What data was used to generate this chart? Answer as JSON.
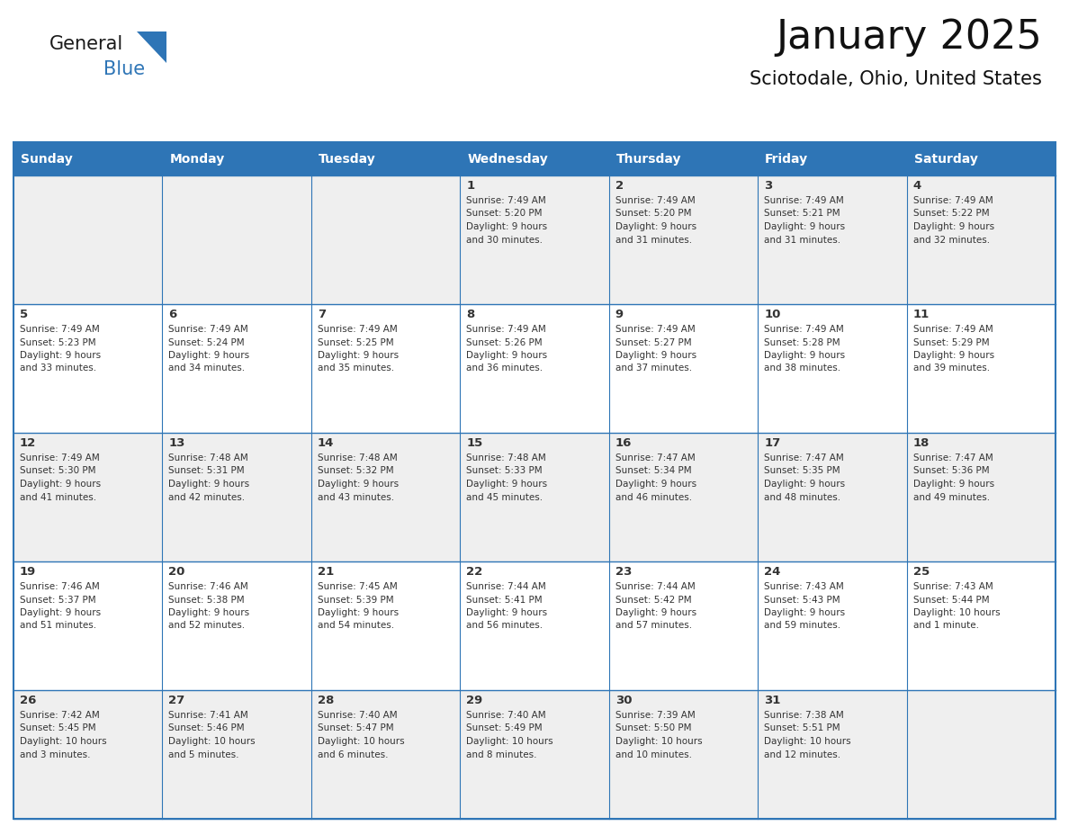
{
  "title": "January 2025",
  "subtitle": "Sciotodale, Ohio, United States",
  "header_bg": "#2E75B6",
  "header_text_color": "#FFFFFF",
  "border_color": "#2E75B6",
  "day_headers": [
    "Sunday",
    "Monday",
    "Tuesday",
    "Wednesday",
    "Thursday",
    "Friday",
    "Saturday"
  ],
  "days": [
    {
      "day": 1,
      "col": 3,
      "row": 0,
      "sunrise": "7:49 AM",
      "sunset": "5:20 PM",
      "daylight_line1": "9 hours",
      "daylight_line2": "and 30 minutes."
    },
    {
      "day": 2,
      "col": 4,
      "row": 0,
      "sunrise": "7:49 AM",
      "sunset": "5:20 PM",
      "daylight_line1": "9 hours",
      "daylight_line2": "and 31 minutes."
    },
    {
      "day": 3,
      "col": 5,
      "row": 0,
      "sunrise": "7:49 AM",
      "sunset": "5:21 PM",
      "daylight_line1": "9 hours",
      "daylight_line2": "and 31 minutes."
    },
    {
      "day": 4,
      "col": 6,
      "row": 0,
      "sunrise": "7:49 AM",
      "sunset": "5:22 PM",
      "daylight_line1": "9 hours",
      "daylight_line2": "and 32 minutes."
    },
    {
      "day": 5,
      "col": 0,
      "row": 1,
      "sunrise": "7:49 AM",
      "sunset": "5:23 PM",
      "daylight_line1": "9 hours",
      "daylight_line2": "and 33 minutes."
    },
    {
      "day": 6,
      "col": 1,
      "row": 1,
      "sunrise": "7:49 AM",
      "sunset": "5:24 PM",
      "daylight_line1": "9 hours",
      "daylight_line2": "and 34 minutes."
    },
    {
      "day": 7,
      "col": 2,
      "row": 1,
      "sunrise": "7:49 AM",
      "sunset": "5:25 PM",
      "daylight_line1": "9 hours",
      "daylight_line2": "and 35 minutes."
    },
    {
      "day": 8,
      "col": 3,
      "row": 1,
      "sunrise": "7:49 AM",
      "sunset": "5:26 PM",
      "daylight_line1": "9 hours",
      "daylight_line2": "and 36 minutes."
    },
    {
      "day": 9,
      "col": 4,
      "row": 1,
      "sunrise": "7:49 AM",
      "sunset": "5:27 PM",
      "daylight_line1": "9 hours",
      "daylight_line2": "and 37 minutes."
    },
    {
      "day": 10,
      "col": 5,
      "row": 1,
      "sunrise": "7:49 AM",
      "sunset": "5:28 PM",
      "daylight_line1": "9 hours",
      "daylight_line2": "and 38 minutes."
    },
    {
      "day": 11,
      "col": 6,
      "row": 1,
      "sunrise": "7:49 AM",
      "sunset": "5:29 PM",
      "daylight_line1": "9 hours",
      "daylight_line2": "and 39 minutes."
    },
    {
      "day": 12,
      "col": 0,
      "row": 2,
      "sunrise": "7:49 AM",
      "sunset": "5:30 PM",
      "daylight_line1": "9 hours",
      "daylight_line2": "and 41 minutes."
    },
    {
      "day": 13,
      "col": 1,
      "row": 2,
      "sunrise": "7:48 AM",
      "sunset": "5:31 PM",
      "daylight_line1": "9 hours",
      "daylight_line2": "and 42 minutes."
    },
    {
      "day": 14,
      "col": 2,
      "row": 2,
      "sunrise": "7:48 AM",
      "sunset": "5:32 PM",
      "daylight_line1": "9 hours",
      "daylight_line2": "and 43 minutes."
    },
    {
      "day": 15,
      "col": 3,
      "row": 2,
      "sunrise": "7:48 AM",
      "sunset": "5:33 PM",
      "daylight_line1": "9 hours",
      "daylight_line2": "and 45 minutes."
    },
    {
      "day": 16,
      "col": 4,
      "row": 2,
      "sunrise": "7:47 AM",
      "sunset": "5:34 PM",
      "daylight_line1": "9 hours",
      "daylight_line2": "and 46 minutes."
    },
    {
      "day": 17,
      "col": 5,
      "row": 2,
      "sunrise": "7:47 AM",
      "sunset": "5:35 PM",
      "daylight_line1": "9 hours",
      "daylight_line2": "and 48 minutes."
    },
    {
      "day": 18,
      "col": 6,
      "row": 2,
      "sunrise": "7:47 AM",
      "sunset": "5:36 PM",
      "daylight_line1": "9 hours",
      "daylight_line2": "and 49 minutes."
    },
    {
      "day": 19,
      "col": 0,
      "row": 3,
      "sunrise": "7:46 AM",
      "sunset": "5:37 PM",
      "daylight_line1": "9 hours",
      "daylight_line2": "and 51 minutes."
    },
    {
      "day": 20,
      "col": 1,
      "row": 3,
      "sunrise": "7:46 AM",
      "sunset": "5:38 PM",
      "daylight_line1": "9 hours",
      "daylight_line2": "and 52 minutes."
    },
    {
      "day": 21,
      "col": 2,
      "row": 3,
      "sunrise": "7:45 AM",
      "sunset": "5:39 PM",
      "daylight_line1": "9 hours",
      "daylight_line2": "and 54 minutes."
    },
    {
      "day": 22,
      "col": 3,
      "row": 3,
      "sunrise": "7:44 AM",
      "sunset": "5:41 PM",
      "daylight_line1": "9 hours",
      "daylight_line2": "and 56 minutes."
    },
    {
      "day": 23,
      "col": 4,
      "row": 3,
      "sunrise": "7:44 AM",
      "sunset": "5:42 PM",
      "daylight_line1": "9 hours",
      "daylight_line2": "and 57 minutes."
    },
    {
      "day": 24,
      "col": 5,
      "row": 3,
      "sunrise": "7:43 AM",
      "sunset": "5:43 PM",
      "daylight_line1": "9 hours",
      "daylight_line2": "and 59 minutes."
    },
    {
      "day": 25,
      "col": 6,
      "row": 3,
      "sunrise": "7:43 AM",
      "sunset": "5:44 PM",
      "daylight_line1": "10 hours",
      "daylight_line2": "and 1 minute."
    },
    {
      "day": 26,
      "col": 0,
      "row": 4,
      "sunrise": "7:42 AM",
      "sunset": "5:45 PM",
      "daylight_line1": "10 hours",
      "daylight_line2": "and 3 minutes."
    },
    {
      "day": 27,
      "col": 1,
      "row": 4,
      "sunrise": "7:41 AM",
      "sunset": "5:46 PM",
      "daylight_line1": "10 hours",
      "daylight_line2": "and 5 minutes."
    },
    {
      "day": 28,
      "col": 2,
      "row": 4,
      "sunrise": "7:40 AM",
      "sunset": "5:47 PM",
      "daylight_line1": "10 hours",
      "daylight_line2": "and 6 minutes."
    },
    {
      "day": 29,
      "col": 3,
      "row": 4,
      "sunrise": "7:40 AM",
      "sunset": "5:49 PM",
      "daylight_line1": "10 hours",
      "daylight_line2": "and 8 minutes."
    },
    {
      "day": 30,
      "col": 4,
      "row": 4,
      "sunrise": "7:39 AM",
      "sunset": "5:50 PM",
      "daylight_line1": "10 hours",
      "daylight_line2": "and 10 minutes."
    },
    {
      "day": 31,
      "col": 5,
      "row": 4,
      "sunrise": "7:38 AM",
      "sunset": "5:51 PM",
      "daylight_line1": "10 hours",
      "daylight_line2": "and 12 minutes."
    }
  ],
  "num_rows": 5,
  "num_cols": 7,
  "logo_color_general": "#1a1a1a",
  "logo_color_blue": "#2E75B6",
  "logo_triangle_color": "#2E75B6",
  "cell_bg_even": "#EFEFEF",
  "cell_bg_odd": "#FFFFFF",
  "text_color": "#333333"
}
